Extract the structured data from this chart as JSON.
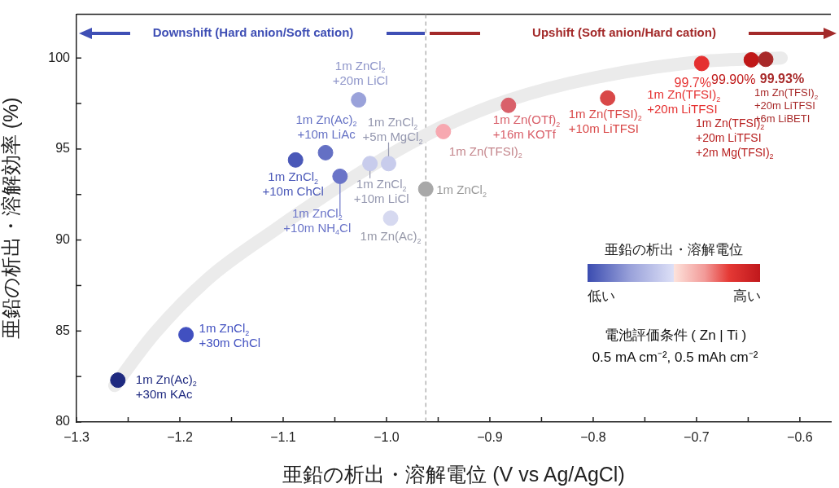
{
  "chart_data": {
    "type": "scatter",
    "xlabel": "亜鉛の析出・溶解電位 (V vs Ag/AgCl)",
    "ylabel": "亜鉛の析出・溶解効率 (%)",
    "xlim": [
      -1.3,
      -0.57
    ],
    "xticks": [
      -1.3,
      {
        "value": -1.25,
        "label": null
      },
      -1.2,
      {
        "value": -1.15,
        "label": null
      },
      -1.1,
      {
        "value": -1.05,
        "label": null
      },
      {
        "value": -1.0,
        "label": "−1.0"
      },
      {
        "value": -0.95,
        "label": null
      },
      -0.9,
      {
        "value": -0.85,
        "label": null
      },
      -0.8,
      {
        "value": -0.75,
        "label": null
      },
      -0.7,
      {
        "value": -0.65,
        "label": null
      },
      -0.6
    ],
    "ylim": [
      80,
      102.4
    ],
    "yticks": [
      80,
      {
        "value": 82.5,
        "label": null
      },
      85,
      {
        "value": 87.5,
        "label": null
      },
      90,
      {
        "value": 92.5,
        "label": null
      },
      95,
      {
        "value": 97.5,
        "label": null
      },
      100
    ],
    "grid": false,
    "marker": "circle",
    "series": [
      {
        "type": "line",
        "marker": "none",
        "color": "#ebebeb",
        "x": [
          -1.263,
          -1.224,
          -1.172,
          -1.107,
          -1.042,
          -0.99,
          -0.943,
          -0.881,
          -0.8,
          -0.696,
          -0.618
        ],
        "values": [
          82.0,
          84.9,
          87.9,
          90.6,
          93.1,
          94.9,
          96.3,
          97.7,
          98.9,
          99.8,
          100.0
        ]
      },
      {
        "x": [
          -1.26,
          -1.194,
          -1.088,
          -1.059,
          -1.045,
          -1.027,
          -1.016,
          -0.998,
          -0.996,
          -0.962,
          -0.945,
          -0.882,
          -0.786,
          -0.695,
          -0.647,
          -0.633
        ],
        "values": [
          82.3,
          84.8,
          94.4,
          94.8,
          93.5,
          97.7,
          94.2,
          94.2,
          91.2,
          92.8,
          95.96,
          97.4,
          97.8,
          99.7,
          99.9,
          99.93
        ],
        "colors": [
          "#1f2a80",
          "#4150c0",
          "#4a58b8",
          "#6470c4",
          "#6a74c8",
          "#9aa2da",
          "#c8ccec",
          "#c8ccec",
          "#d6d9f0",
          "#a8a8a8",
          "#f7a8b0",
          "#d9606a",
          "#d94848",
          "#e53030",
          "#c01818",
          "#a82a2a"
        ],
        "value_labels": [
          null,
          null,
          null,
          null,
          null,
          null,
          null,
          null,
          null,
          null,
          null,
          null,
          null,
          "99.7%",
          "99.90%",
          "99.93%"
        ]
      }
    ],
    "ref_lines": [
      {
        "axis": "x",
        "value": -0.962,
        "color": "#a0a0a0",
        "line_style": "dashed"
      }
    ],
    "annotations": [
      "Downshift (Hard anion/Soft cation)",
      "Upshift (Soft anion/Hard cation)",
      {
        "text": "1m Zn(Ac)$_{2}$\n+30m KAc",
        "x": -1.26,
        "y": 82.3
      },
      {
        "text": "1m ZnCl$_{2}$\n+30m ChCl",
        "x": -1.194,
        "y": 84.8
      },
      {
        "text": "1m ZnCl$_{2}$\n+10m ChCl",
        "x": -1.088,
        "y": 94.4
      },
      {
        "text": "1m Zn(Ac)$_{2}$\n+10m LiAc",
        "x": -1.059,
        "y": 94.8
      },
      {
        "text": "1m ZnCl$_{2}$\n+10m NH$_{4}$Cl",
        "x": -1.045,
        "y": 93.5
      },
      {
        "text": "1m ZnCl$_{2}$\n+20m LiCl",
        "x": -1.027,
        "y": 97.7
      },
      {
        "text": "1m ZnCl$_{2}$\n+10m LiCl",
        "x": -1.016,
        "y": 94.2
      },
      {
        "text": "1m ZnCl$_{2}$\n+5m MgCl$_{2}$",
        "x": -0.998,
        "y": 94.2
      },
      {
        "text": "1m Zn(Ac)$_{2}$",
        "x": -0.996,
        "y": 91.2
      },
      {
        "text": "1m ZnCl$_{2}$",
        "x": -0.962,
        "y": 92.8
      },
      {
        "text": "1m Zn(TFSI)$_{2}$",
        "x": -0.945,
        "y": 95.96
      },
      {
        "text": "1m Zn(OTf)$_{2}$\n+16m KOTf",
        "x": -0.882,
        "y": 97.4
      },
      {
        "text": "1m Zn(TFSI)$_{2}$\n+10m LiTFSI",
        "x": -0.786,
        "y": 97.8
      },
      {
        "text": "1m Zn(TFSI)$_{2}$\n+20m LiTFSI",
        "x": -0.695,
        "y": 99.7
      },
      "1m Zn(TFSI)$_{2}$\n+20m LiTFSI\n+2m Mg(TFSI)$_{2}$",
      {
        "text": "1m Zn(TFSI)$_{2}$\n+20m LiTFSI\n+6m LiBETI",
        "x": -0.633,
        "y": 99.93
      },
      "亜鉛の析出・溶解電位",
      "低い",
      "高い",
      "電池評価条件 ( Zn | Ti )",
      "0.5 mA cm⁻², 0.5 mAh cm⁻²"
    ]
  }
}
